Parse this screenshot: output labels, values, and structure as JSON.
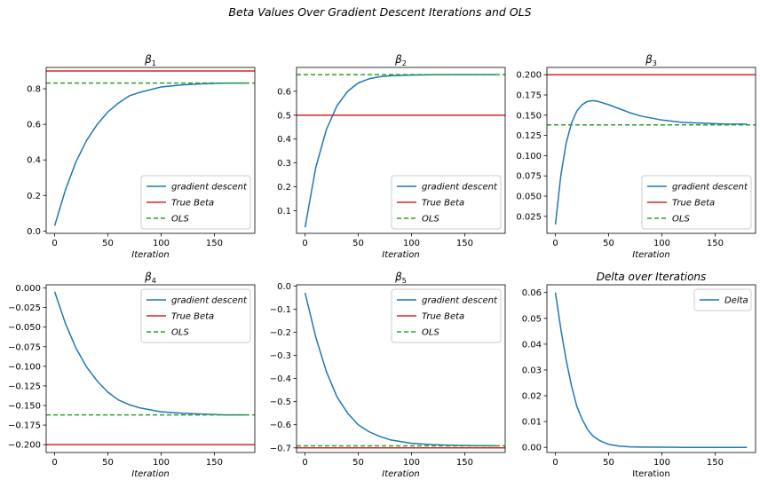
{
  "figure": {
    "suptitle": "Beta Values Over Gradient Descent Iterations and OLS"
  },
  "colors": {
    "gd": "#1f77b4",
    "true": "#d62728",
    "ols": "#2ca02c"
  },
  "chart_data": [
    {
      "type": "line",
      "title": "β₁",
      "title_base": "β",
      "title_sub": "1",
      "xlabel": "Iteration",
      "xlabel_italic": true,
      "xlim": [
        -8,
        188
      ],
      "ylim": [
        -0.013,
        0.92
      ],
      "xticks": [
        0,
        50,
        100,
        150
      ],
      "yticks": [
        0.0,
        0.2,
        0.4,
        0.6,
        0.8
      ],
      "ytick_labels": [
        "0.0",
        "0.2",
        "0.4",
        "0.6",
        "0.8"
      ],
      "legend": {
        "position": "lower-right",
        "entries": [
          "gradient descent",
          "True Beta",
          "OLS"
        ]
      },
      "series": [
        {
          "name": "gradient descent",
          "kind": "curve",
          "x": [
            0,
            10,
            20,
            30,
            40,
            50,
            60,
            70,
            80,
            100,
            120,
            140,
            160,
            180
          ],
          "y": [
            0.03,
            0.23,
            0.39,
            0.51,
            0.6,
            0.67,
            0.72,
            0.76,
            0.78,
            0.81,
            0.822,
            0.828,
            0.831,
            0.832
          ]
        },
        {
          "name": "True Beta",
          "kind": "hline",
          "y": 0.9
        },
        {
          "name": "OLS",
          "kind": "hline",
          "y": 0.832,
          "dashed": true
        }
      ]
    },
    {
      "type": "line",
      "title": "β₂",
      "title_base": "β",
      "title_sub": "2",
      "xlabel": "Iteration",
      "xlabel_italic": true,
      "xlim": [
        -8,
        188
      ],
      "ylim": [
        0.005,
        0.7
      ],
      "xticks": [
        0,
        50,
        100,
        150
      ],
      "yticks": [
        0.1,
        0.2,
        0.3,
        0.4,
        0.5,
        0.6
      ],
      "ytick_labels": [
        "0.1",
        "0.2",
        "0.3",
        "0.4",
        "0.5",
        "0.6"
      ],
      "legend": {
        "position": "lower-right",
        "entries": [
          "gradient descent",
          "True Beta",
          "OLS"
        ]
      },
      "series": [
        {
          "name": "gradient descent",
          "kind": "curve",
          "x": [
            0,
            10,
            20,
            30,
            40,
            50,
            60,
            70,
            80,
            100,
            120,
            140,
            160,
            180
          ],
          "y": [
            0.03,
            0.28,
            0.44,
            0.54,
            0.6,
            0.635,
            0.652,
            0.661,
            0.665,
            0.668,
            0.669,
            0.67,
            0.67,
            0.67
          ]
        },
        {
          "name": "True Beta",
          "kind": "hline",
          "y": 0.5
        },
        {
          "name": "OLS",
          "kind": "hline",
          "y": 0.67,
          "dashed": true
        }
      ]
    },
    {
      "type": "line",
      "title": "β₃",
      "title_base": "β",
      "title_sub": "3",
      "xlabel": "Iteration",
      "xlabel_italic": true,
      "xlim": [
        -8,
        188
      ],
      "ylim": [
        0.004,
        0.209
      ],
      "xticks": [
        0,
        50,
        100,
        150
      ],
      "yticks": [
        0.025,
        0.05,
        0.075,
        0.1,
        0.125,
        0.15,
        0.175,
        0.2
      ],
      "ytick_labels": [
        "0.025",
        "0.050",
        "0.075",
        "0.100",
        "0.125",
        "0.150",
        "0.175",
        "0.200"
      ],
      "legend": {
        "position": "lower-right",
        "entries": [
          "gradient descent",
          "True Beta",
          "OLS"
        ]
      },
      "series": [
        {
          "name": "gradient descent",
          "kind": "curve",
          "x": [
            0,
            5,
            10,
            15,
            20,
            25,
            30,
            35,
            40,
            50,
            60,
            70,
            80,
            100,
            120,
            140,
            160,
            180
          ],
          "y": [
            0.015,
            0.075,
            0.115,
            0.14,
            0.155,
            0.163,
            0.167,
            0.168,
            0.167,
            0.163,
            0.158,
            0.153,
            0.149,
            0.144,
            0.141,
            0.14,
            0.139,
            0.139
          ]
        },
        {
          "name": "True Beta",
          "kind": "hline",
          "y": 0.2
        },
        {
          "name": "OLS",
          "kind": "hline",
          "y": 0.138,
          "dashed": true
        }
      ]
    },
    {
      "type": "line",
      "title": "β₄",
      "title_base": "β",
      "title_sub": "4",
      "xlabel": "Iteration",
      "xlabel_italic": true,
      "xlim": [
        -8,
        188
      ],
      "ylim": [
        -0.21,
        0.004
      ],
      "xticks": [
        0,
        50,
        100,
        150
      ],
      "yticks": [
        -0.2,
        -0.175,
        -0.15,
        -0.125,
        -0.1,
        -0.075,
        -0.05,
        -0.025,
        0.0
      ],
      "ytick_labels": [
        "−0.200",
        "−0.175",
        "−0.150",
        "−0.125",
        "−0.100",
        "−0.075",
        "−0.050",
        "−0.025",
        "0.000"
      ],
      "legend": {
        "position": "upper-right",
        "entries": [
          "gradient descent",
          "True Beta",
          "OLS"
        ]
      },
      "series": [
        {
          "name": "gradient descent",
          "kind": "curve",
          "x": [
            0,
            10,
            20,
            30,
            40,
            50,
            60,
            70,
            80,
            100,
            120,
            140,
            160,
            180
          ],
          "y": [
            -0.005,
            -0.045,
            -0.077,
            -0.101,
            -0.119,
            -0.133,
            -0.143,
            -0.149,
            -0.153,
            -0.158,
            -0.16,
            -0.161,
            -0.162,
            -0.162
          ]
        },
        {
          "name": "True Beta",
          "kind": "hline",
          "y": -0.2
        },
        {
          "name": "OLS",
          "kind": "hline",
          "y": -0.162,
          "dashed": true
        }
      ]
    },
    {
      "type": "line",
      "title": "β₅",
      "title_base": "β",
      "title_sub": "5",
      "xlabel": "Iteration",
      "xlabel_italic": true,
      "xlim": [
        -8,
        188
      ],
      "ylim": [
        -0.72,
        0.005
      ],
      "xticks": [
        0,
        50,
        100,
        150
      ],
      "yticks": [
        -0.7,
        -0.6,
        -0.5,
        -0.4,
        -0.3,
        -0.2,
        -0.1,
        0.0
      ],
      "ytick_labels": [
        "−0.7",
        "−0.6",
        "−0.5",
        "−0.4",
        "−0.3",
        "−0.2",
        "−0.1",
        "0.0"
      ],
      "legend": {
        "position": "upper-right",
        "entries": [
          "gradient descent",
          "True Beta",
          "OLS"
        ]
      },
      "series": [
        {
          "name": "gradient descent",
          "kind": "curve",
          "x": [
            0,
            10,
            20,
            30,
            40,
            50,
            60,
            70,
            80,
            100,
            120,
            140,
            160,
            180
          ],
          "y": [
            -0.03,
            -0.22,
            -0.37,
            -0.48,
            -0.55,
            -0.6,
            -0.63,
            -0.65,
            -0.665,
            -0.68,
            -0.686,
            -0.689,
            -0.69,
            -0.691
          ]
        },
        {
          "name": "True Beta",
          "kind": "hline",
          "y": -0.7
        },
        {
          "name": "OLS",
          "kind": "hline",
          "y": -0.691,
          "dashed": true
        }
      ]
    },
    {
      "type": "line",
      "title": "Delta over Iterations",
      "title_base": "Delta over Iterations",
      "title_sub": "",
      "xlabel": "Iteration",
      "xlabel_italic": false,
      "xlim": [
        -8,
        188
      ],
      "ylim": [
        -0.002,
        0.063
      ],
      "xticks": [
        0,
        50,
        100,
        150
      ],
      "yticks": [
        0.0,
        0.01,
        0.02,
        0.03,
        0.04,
        0.05,
        0.06
      ],
      "ytick_labels": [
        "0.00",
        "0.01",
        "0.02",
        "0.03",
        "0.04",
        "0.05",
        "0.06"
      ],
      "legend": {
        "position": "upper-right",
        "entries": [
          "Delta"
        ]
      },
      "series": [
        {
          "name": "Delta",
          "kind": "curve",
          "x": [
            0,
            5,
            10,
            15,
            20,
            25,
            30,
            35,
            40,
            45,
            50,
            60,
            70,
            80,
            100,
            120,
            150,
            180
          ],
          "y": [
            0.06,
            0.046,
            0.034,
            0.024,
            0.016,
            0.011,
            0.007,
            0.0045,
            0.003,
            0.002,
            0.0012,
            0.0005,
            0.0002,
            0.0001,
            5e-05,
            0.0,
            0.0,
            0.0
          ]
        }
      ]
    }
  ]
}
